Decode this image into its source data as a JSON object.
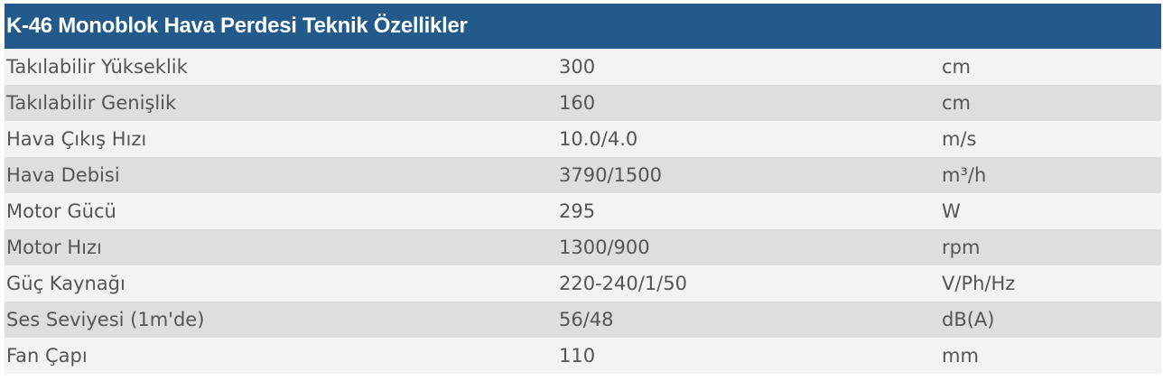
{
  "title": "K-46 Monoblok Hava Perdesi Teknik Özellikler",
  "rows": [
    {
      "label": "Takılabilir Yükseklik",
      "value": "300",
      "unit": "cm"
    },
    {
      "label": "Takılabilir Genişlik",
      "value": "160",
      "unit": "cm"
    },
    {
      "label": "Hava Çıkış Hızı",
      "value": "10.0/4.0",
      "unit": "m/s"
    },
    {
      "label": "Hava Debisi",
      "value": "3790/1500",
      "unit": "m³/h"
    },
    {
      "label": "Motor Gücü",
      "value": "295",
      "unit": "W"
    },
    {
      "label": "Motor Hızı",
      "value": "1300/900",
      "unit": "rpm"
    },
    {
      "label": "Güç Kaynağı",
      "value": "220-240/1/50",
      "unit": "V/Ph/Hz"
    },
    {
      "label": "Ses Seviyesi (1m'de)",
      "value": "56/48",
      "unit": "dB(A)"
    },
    {
      "label": "Fan Çapı",
      "value": "110",
      "unit": "mm"
    }
  ],
  "colors": {
    "header_bg": "#235a8c",
    "header_text": "#ffffff",
    "row_light": "#f3f3f3",
    "row_dark": "#dedede",
    "cell_text": "#555555"
  }
}
